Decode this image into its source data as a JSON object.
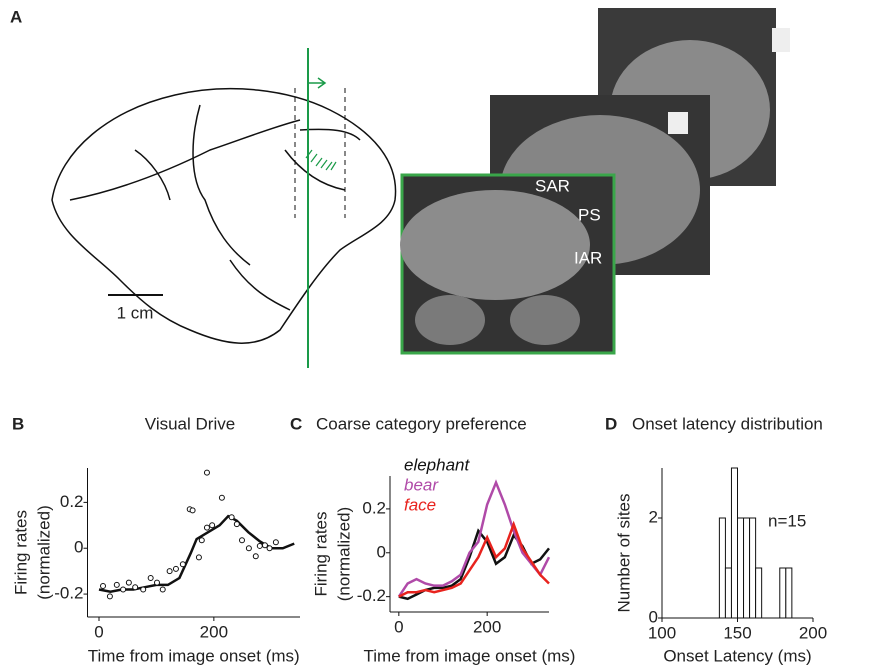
{
  "figure": {
    "panel_a": {
      "letter": "A",
      "scale_bar": "1 cm",
      "labels": [
        "SAR",
        "PS",
        "IAR"
      ]
    }
  },
  "chart_data": [
    {
      "type": "line",
      "panel": "B",
      "title": "Visual Drive",
      "xlabel": "Time from image onset (ms)",
      "ylabel": [
        "Firing rates",
        "(normalized)"
      ],
      "x": [
        0,
        20,
        40,
        60,
        80,
        100,
        120,
        140,
        160,
        170,
        190,
        210,
        225,
        240,
        260,
        280,
        300,
        320,
        340
      ],
      "values": [
        -0.18,
        -0.19,
        -0.18,
        -0.18,
        -0.17,
        -0.16,
        -0.16,
        -0.13,
        -0.02,
        0.04,
        0.07,
        0.1,
        0.14,
        0.12,
        0.07,
        0.03,
        0.0,
        0.0,
        0.02
      ],
      "color": "#111111",
      "points": {
        "x": [
          7,
          19,
          31,
          42,
          52,
          63,
          77,
          90,
          101,
          111,
          123,
          134,
          146,
          158,
          163,
          174,
          179,
          188,
          197,
          188,
          214,
          231,
          240,
          249,
          261,
          273,
          280,
          289,
          297,
          308
        ],
        "y": [
          -0.165,
          -0.21,
          -0.16,
          -0.18,
          -0.15,
          -0.17,
          -0.18,
          -0.13,
          -0.15,
          -0.18,
          -0.1,
          -0.09,
          -0.07,
          0.17,
          0.165,
          -0.04,
          0.035,
          0.09,
          0.1,
          0.33,
          0.22,
          0.135,
          0.105,
          0.035,
          0.0,
          -0.035,
          0.01,
          0.013,
          0.0,
          0.026
        ]
      },
      "xlim": [
        -20,
        350
      ],
      "ylim": [
        -0.3,
        0.35
      ],
      "xticks": [
        0,
        200
      ],
      "yticks": [
        -0.2,
        0,
        0.2
      ]
    },
    {
      "type": "multiline",
      "panel": "C",
      "title": "Coarse category preference",
      "xlabel": "Time from image onset (ms)",
      "ylabel": [
        "Firing rates",
        "(normalized)"
      ],
      "x": [
        0,
        20,
        40,
        60,
        80,
        100,
        120,
        140,
        160,
        180,
        200,
        220,
        240,
        260,
        280,
        300,
        320,
        340
      ],
      "series": [
        {
          "name": "elephant",
          "color": "#111111",
          "values": [
            -0.2,
            -0.21,
            -0.19,
            -0.17,
            -0.16,
            -0.16,
            -0.15,
            -0.12,
            -0.02,
            0.1,
            0.05,
            -0.05,
            -0.02,
            0.08,
            0.03,
            -0.05,
            -0.03,
            0.02
          ]
        },
        {
          "name": "bear",
          "color": "#b04aa8",
          "values": [
            -0.2,
            -0.14,
            -0.12,
            -0.14,
            -0.15,
            -0.15,
            -0.13,
            -0.1,
            0.0,
            0.05,
            0.22,
            0.32,
            0.22,
            0.1,
            0.0,
            -0.05,
            -0.1,
            -0.02
          ]
        },
        {
          "name": "face",
          "color": "#e8231e",
          "values": [
            -0.2,
            -0.18,
            -0.18,
            -0.17,
            -0.18,
            -0.17,
            -0.16,
            -0.14,
            -0.08,
            -0.02,
            0.07,
            -0.02,
            0.02,
            0.13,
            0.02,
            -0.04,
            -0.1,
            -0.14
          ]
        }
      ],
      "xlim": [
        -20,
        340
      ],
      "ylim": [
        -0.27,
        0.35
      ],
      "xticks": [
        0,
        200
      ],
      "yticks": [
        -0.2,
        0,
        0.2
      ]
    },
    {
      "type": "histogram",
      "panel": "D",
      "title": "Onset latency distribution",
      "xlabel": "Onset Latency (ms)",
      "ylabel": [
        "Number of sites"
      ],
      "annotation": "n=15",
      "bins": [
        138,
        142,
        146,
        150,
        154,
        158,
        162,
        166,
        170,
        174,
        178,
        182,
        186
      ],
      "values": [
        2,
        1,
        3,
        2,
        2,
        2,
        1,
        0,
        0,
        0,
        1,
        1
      ],
      "color": "#ffffff",
      "xlim": [
        100,
        200
      ],
      "ylim": [
        0,
        3
      ],
      "xticks": [
        100,
        150,
        200
      ],
      "yticks": [
        0,
        2
      ]
    }
  ]
}
